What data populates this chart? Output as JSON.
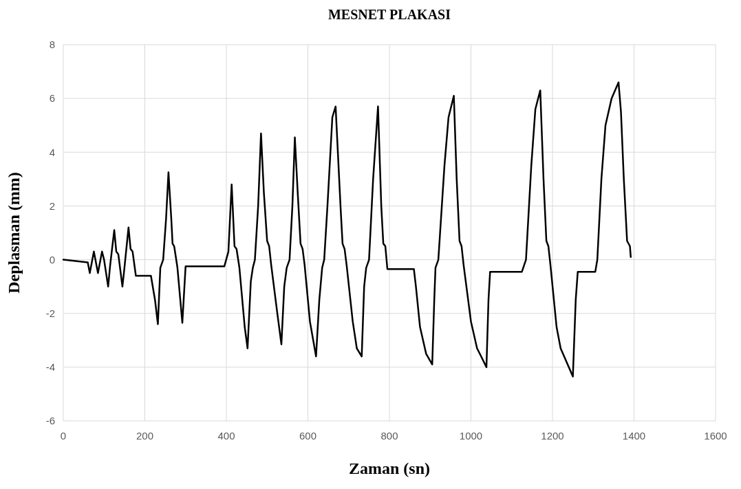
{
  "chart_data": {
    "type": "line",
    "title": "MESNET PLAKASI",
    "xlabel": "Zaman (sn)",
    "ylabel": "Deplasman (mm)",
    "xlim": [
      0,
      1600
    ],
    "xticks": [
      0,
      200,
      400,
      600,
      800,
      1000,
      1200,
      1400,
      1600
    ],
    "ylim": [
      -6,
      8
    ],
    "yticks": [
      -6,
      -4,
      -2,
      0,
      2,
      4,
      6,
      8
    ],
    "grid": true,
    "marker": "none",
    "line_style": "solid",
    "series": [
      {
        "color": "#000000",
        "x": [
          0,
          60,
          65,
          75,
          85,
          95,
          100,
          110,
          115,
          125,
          130,
          135,
          145,
          150,
          160,
          165,
          170,
          178,
          215,
          225,
          232,
          238,
          245,
          252,
          258,
          265,
          268,
          272,
          280,
          292,
          300,
          395,
          405,
          413,
          420,
          425,
          432,
          445,
          452,
          460,
          465,
          470,
          478,
          485,
          492,
          500,
          505,
          510,
          525,
          535,
          542,
          548,
          555,
          562,
          568,
          575,
          582,
          587,
          592,
          605,
          620,
          628,
          635,
          640,
          648,
          660,
          668,
          680,
          685,
          690,
          695,
          710,
          720,
          732,
          738,
          743,
          750,
          760,
          772,
          780,
          785,
          790,
          795,
          860,
          865,
          875,
          890,
          905,
          910,
          913,
          920,
          935,
          945,
          958,
          965,
          972,
          977,
          982,
          1000,
          1015,
          1025,
          1038,
          1043,
          1047,
          1125,
          1135,
          1148,
          1158,
          1170,
          1178,
          1185,
          1190,
          1195,
          1210,
          1220,
          1240,
          1250,
          1257,
          1262,
          1305,
          1310,
          1320,
          1330,
          1345,
          1362,
          1368,
          1375,
          1383,
          1390,
          1392
        ],
        "values": [
          0,
          -0.1,
          -0.5,
          0.3,
          -0.5,
          0.3,
          0,
          -1.0,
          -0.2,
          1.1,
          0.3,
          0.2,
          -1.0,
          -0.3,
          1.2,
          0.4,
          0.3,
          -0.6,
          -0.6,
          -1.5,
          -2.4,
          -0.3,
          0,
          1.5,
          3.25,
          1.5,
          0.6,
          0.5,
          -0.3,
          -2.35,
          -0.25,
          -0.25,
          0.3,
          2.8,
          0.5,
          0.4,
          -0.3,
          -2.5,
          -3.3,
          -0.8,
          -0.3,
          0,
          2.0,
          4.7,
          2.5,
          0.7,
          0.5,
          -0.2,
          -2.0,
          -3.15,
          -1.0,
          -0.3,
          0,
          2.0,
          4.55,
          2.5,
          0.6,
          0.4,
          -0.2,
          -2.3,
          -3.6,
          -1.5,
          -0.3,
          0,
          2.0,
          5.3,
          5.7,
          2.0,
          0.6,
          0.4,
          -0.2,
          -2.3,
          -3.3,
          -3.6,
          -1.0,
          -0.3,
          0,
          3.0,
          5.7,
          2.0,
          0.6,
          0.5,
          -0.35,
          -0.35,
          -1,
          -2.5,
          -3.5,
          -3.9,
          -1.5,
          -0.3,
          0,
          3.5,
          5.3,
          6.1,
          3.0,
          0.7,
          0.5,
          -0.2,
          -2.3,
          -3.3,
          -3.6,
          -4.0,
          -1.5,
          -0.45,
          -0.45,
          0,
          3.5,
          5.6,
          6.3,
          3.0,
          0.7,
          0.5,
          -0.2,
          -2.5,
          -3.3,
          -4.0,
          -4.35,
          -1.5,
          -0.45,
          -0.45,
          0,
          3.0,
          5.0,
          6.0,
          6.6,
          5.5,
          3.0,
          0.7,
          0.5,
          0.1
        ]
      }
    ]
  }
}
